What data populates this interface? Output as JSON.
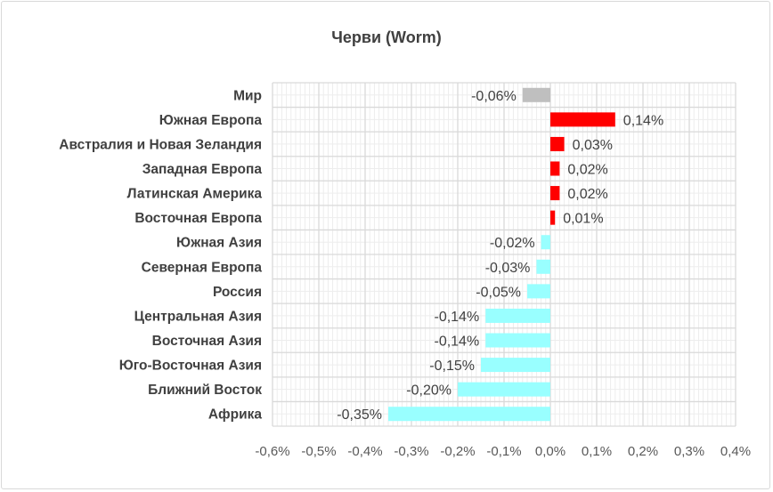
{
  "chart_data": {
    "type": "bar",
    "orientation": "horizontal",
    "title": "Черви (Worm)",
    "categories": [
      "Мир",
      "Южная Европа",
      "Австралия и Новая Зеландия",
      "Западная Европа",
      "Латинская Америка",
      "Восточная Европа",
      "Южная Азия",
      "Северная Европа",
      "Россия",
      "Центральная Азия",
      "Восточная Азия",
      "Юго-Восточная Азия",
      "Ближний Восток",
      "Африка"
    ],
    "values": [
      -0.06,
      0.14,
      0.03,
      0.02,
      0.02,
      0.01,
      -0.02,
      -0.03,
      -0.05,
      -0.14,
      -0.14,
      -0.15,
      -0.2,
      -0.35
    ],
    "data_labels": [
      "-0,06%",
      "0,14%",
      "0,03%",
      "0,02%",
      "0,02%",
      "0,01%",
      "-0,02%",
      "-0,03%",
      "-0,05%",
      "-0,14%",
      "-0,14%",
      "-0,15%",
      "-0,20%",
      "-0,35%"
    ],
    "xlim": [
      -0.6,
      0.4
    ],
    "x_ticks": [
      -0.6,
      -0.5,
      -0.4,
      -0.3,
      -0.2,
      -0.1,
      0.0,
      0.1,
      0.2,
      0.3,
      0.4
    ],
    "x_tick_labels": [
      "-0,6%",
      "-0,5%",
      "-0,4%",
      "-0,3%",
      "-0,2%",
      "-0,1%",
      "0,0%",
      "0,1%",
      "0,2%",
      "0,3%",
      "0,4%"
    ],
    "xlabel": "",
    "ylabel": "",
    "grid": true,
    "minor_grid": true,
    "legend": "none",
    "colors": {
      "world": "#BFBFBF",
      "positive": "#FF0000",
      "negative": "#99FFFF",
      "grid": "#D9D9D9",
      "minor_grid": "#EDEDED"
    }
  }
}
